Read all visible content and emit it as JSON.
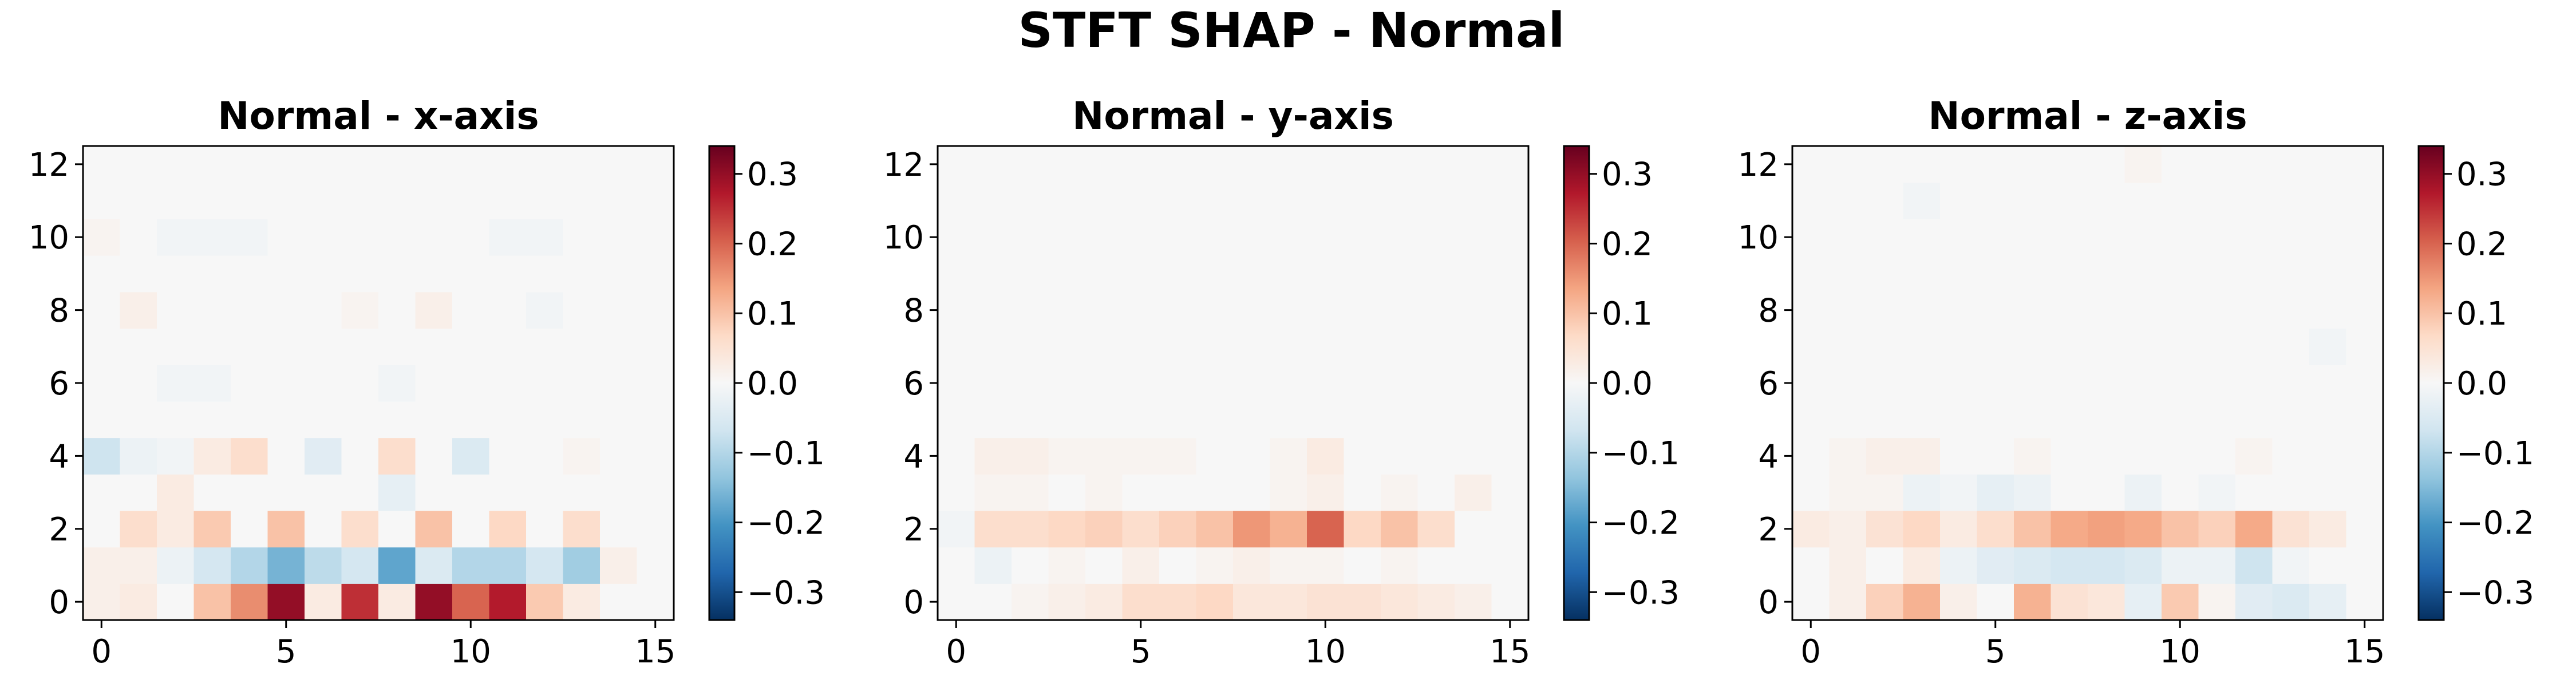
{
  "figure": {
    "suptitle": "STFT SHAP - Normal"
  },
  "chart_data": [
    {
      "type": "heatmap",
      "title": "Normal - x-axis",
      "xlabel": "",
      "ylabel": "",
      "xlim": [
        -0.5,
        15.5
      ],
      "ylim": [
        -0.5,
        12.5
      ],
      "xticks": [
        0,
        5,
        10,
        15
      ],
      "yticks": [
        0,
        2,
        4,
        6,
        8,
        10,
        12
      ],
      "colormap": "RdBu_r",
      "vmin": -0.34,
      "vmax": 0.34,
      "colorbar_ticks": [
        "0.3",
        "0.2",
        "0.1",
        "0.0",
        "−0.1",
        "−0.2",
        "−0.3"
      ],
      "colorbar_tick_values": [
        0.3,
        0.2,
        0.1,
        0.0,
        -0.1,
        -0.2,
        -0.3
      ],
      "z": [
        [
          0.02,
          0.03,
          0.0,
          0.1,
          0.16,
          0.3,
          0.03,
          0.25,
          0.03,
          0.3,
          0.2,
          0.27,
          0.09,
          0.03,
          0.0,
          0.0
        ],
        [
          0.02,
          0.02,
          -0.02,
          -0.06,
          -0.1,
          -0.16,
          -0.09,
          -0.06,
          -0.18,
          -0.05,
          -0.1,
          -0.1,
          -0.06,
          -0.12,
          0.02,
          0.0
        ],
        [
          0.0,
          0.06,
          0.03,
          0.09,
          0.0,
          0.1,
          0.0,
          0.06,
          0.0,
          0.1,
          0.0,
          0.07,
          0.0,
          0.06,
          0.0,
          0.0
        ],
        [
          0.0,
          0.0,
          0.03,
          0.0,
          0.0,
          0.0,
          0.0,
          0.0,
          -0.03,
          0.0,
          0.0,
          0.0,
          0.0,
          0.0,
          0.0,
          0.0
        ],
        [
          -0.07,
          -0.02,
          -0.01,
          0.03,
          0.06,
          0.0,
          -0.04,
          0.0,
          0.06,
          0.0,
          -0.05,
          0.0,
          0.0,
          0.01,
          0.0,
          0.0
        ],
        [
          0.0,
          0.0,
          0.0,
          0.0,
          0.0,
          0.0,
          0.0,
          0.0,
          0.0,
          0.0,
          0.0,
          0.0,
          0.0,
          0.0,
          0.0,
          0.0
        ],
        [
          0.0,
          0.0,
          -0.01,
          -0.01,
          0.0,
          0.0,
          0.0,
          0.0,
          -0.01,
          0.0,
          0.0,
          0.0,
          0.0,
          0.0,
          0.0,
          0.0
        ],
        [
          0.0,
          0.0,
          0.0,
          0.0,
          0.0,
          0.0,
          0.0,
          0.0,
          0.0,
          0.0,
          0.0,
          0.0,
          0.0,
          0.0,
          0.0,
          0.0
        ],
        [
          0.0,
          0.02,
          0.0,
          0.0,
          0.0,
          0.0,
          0.0,
          0.01,
          0.0,
          0.02,
          0.0,
          0.0,
          -0.01,
          0.0,
          0.0,
          0.0
        ],
        [
          0.0,
          0.0,
          0.0,
          0.0,
          0.0,
          0.0,
          0.0,
          0.0,
          0.0,
          0.0,
          0.0,
          0.0,
          0.0,
          0.0,
          0.0,
          0.0
        ],
        [
          0.01,
          0.0,
          -0.01,
          -0.01,
          -0.01,
          0.0,
          0.0,
          0.0,
          0.0,
          0.0,
          0.0,
          -0.01,
          -0.01,
          0.0,
          0.0,
          0.0
        ],
        [
          0.0,
          0.0,
          0.0,
          0.0,
          0.0,
          0.0,
          0.0,
          0.0,
          0.0,
          0.0,
          0.0,
          0.0,
          0.0,
          0.0,
          0.0,
          0.0
        ],
        [
          0.0,
          0.0,
          0.0,
          0.0,
          0.0,
          0.0,
          0.0,
          0.0,
          0.0,
          0.0,
          0.0,
          0.0,
          0.0,
          0.0,
          0.0,
          0.0
        ]
      ]
    },
    {
      "type": "heatmap",
      "title": "Normal - y-axis",
      "xlabel": "",
      "ylabel": "",
      "xlim": [
        -0.5,
        15.5
      ],
      "ylim": [
        -0.5,
        12.5
      ],
      "xticks": [
        0,
        5,
        10,
        15
      ],
      "yticks": [
        0,
        2,
        4,
        6,
        8,
        10,
        12
      ],
      "colormap": "RdBu_r",
      "vmin": -0.34,
      "vmax": 0.34,
      "colorbar_ticks": [
        "0.3",
        "0.2",
        "0.1",
        "0.0",
        "−0.1",
        "−0.2",
        "−0.3"
      ],
      "colorbar_tick_values": [
        0.3,
        0.2,
        0.1,
        0.0,
        -0.1,
        -0.2,
        -0.3
      ],
      "z": [
        [
          0.0,
          0.0,
          0.01,
          0.02,
          0.03,
          0.06,
          0.06,
          0.07,
          0.04,
          0.04,
          0.05,
          0.05,
          0.04,
          0.03,
          0.02,
          0.0
        ],
        [
          0.0,
          -0.02,
          0.0,
          0.01,
          0.0,
          0.02,
          0.0,
          0.01,
          0.02,
          0.01,
          0.01,
          0.0,
          0.01,
          0.0,
          0.0,
          0.0
        ],
        [
          -0.01,
          0.06,
          0.06,
          0.07,
          0.08,
          0.06,
          0.08,
          0.1,
          0.15,
          0.12,
          0.2,
          0.07,
          0.1,
          0.06,
          0.0,
          0.0
        ],
        [
          0.0,
          0.01,
          0.01,
          0.0,
          0.01,
          0.0,
          0.0,
          0.0,
          0.0,
          0.01,
          0.02,
          0.0,
          0.01,
          0.0,
          0.02,
          0.0
        ],
        [
          0.0,
          0.02,
          0.02,
          0.01,
          0.01,
          0.01,
          0.01,
          0.0,
          0.0,
          0.01,
          0.03,
          0.0,
          0.0,
          0.0,
          0.0,
          0.0
        ],
        [
          0.0,
          0.0,
          0.0,
          0.0,
          0.0,
          0.0,
          0.0,
          0.0,
          0.0,
          0.0,
          0.0,
          0.0,
          0.0,
          0.0,
          0.0,
          0.0
        ],
        [
          0.0,
          0.0,
          0.0,
          0.0,
          0.0,
          0.0,
          0.0,
          0.0,
          0.0,
          0.0,
          0.0,
          0.0,
          0.0,
          0.0,
          0.0,
          0.0
        ],
        [
          0.0,
          0.0,
          0.0,
          0.0,
          0.0,
          0.0,
          0.0,
          0.0,
          0.0,
          0.0,
          0.0,
          0.0,
          0.0,
          0.0,
          0.0,
          0.0
        ],
        [
          0.0,
          0.0,
          0.0,
          0.0,
          0.0,
          0.0,
          0.0,
          0.0,
          0.0,
          0.0,
          0.0,
          0.0,
          0.0,
          0.0,
          0.0,
          0.0
        ],
        [
          0.0,
          0.0,
          0.0,
          0.0,
          0.0,
          0.0,
          0.0,
          0.0,
          0.0,
          0.0,
          0.0,
          0.0,
          0.0,
          0.0,
          0.0,
          0.0
        ],
        [
          0.0,
          0.0,
          0.0,
          0.0,
          0.0,
          0.0,
          0.0,
          0.0,
          0.0,
          0.0,
          0.0,
          0.0,
          0.0,
          0.0,
          0.0,
          0.0
        ],
        [
          0.0,
          0.0,
          0.0,
          0.0,
          0.0,
          0.0,
          0.0,
          0.0,
          0.0,
          0.0,
          0.0,
          0.0,
          0.0,
          0.0,
          0.0,
          0.0
        ],
        [
          0.0,
          0.0,
          0.0,
          0.0,
          0.0,
          0.0,
          0.0,
          0.0,
          0.0,
          0.0,
          0.0,
          0.0,
          0.0,
          0.0,
          0.0,
          0.0
        ]
      ]
    },
    {
      "type": "heatmap",
      "title": "Normal - z-axis",
      "xlabel": "",
      "ylabel": "",
      "xlim": [
        -0.5,
        15.5
      ],
      "ylim": [
        -0.5,
        12.5
      ],
      "xticks": [
        0,
        5,
        10,
        15
      ],
      "yticks": [
        0,
        2,
        4,
        6,
        8,
        10,
        12
      ],
      "colormap": "RdBu_r",
      "vmin": -0.34,
      "vmax": 0.34,
      "colorbar_ticks": [
        "0.3",
        "0.2",
        "0.1",
        "0.0",
        "−0.1",
        "−0.2",
        "−0.3"
      ],
      "colorbar_tick_values": [
        0.3,
        0.2,
        0.1,
        0.0,
        -0.1,
        -0.2,
        -0.3
      ],
      "z": [
        [
          0.0,
          0.02,
          0.08,
          0.12,
          0.02,
          0.0,
          0.12,
          0.05,
          0.04,
          -0.03,
          0.09,
          0.01,
          -0.04,
          -0.05,
          -0.03,
          0.0
        ],
        [
          0.0,
          0.02,
          0.0,
          0.03,
          -0.02,
          -0.04,
          -0.05,
          -0.06,
          -0.06,
          -0.05,
          -0.02,
          -0.02,
          -0.07,
          -0.01,
          0.0,
          0.0
        ],
        [
          0.03,
          0.02,
          0.05,
          0.07,
          0.03,
          0.06,
          0.1,
          0.13,
          0.14,
          0.13,
          0.1,
          0.08,
          0.13,
          0.05,
          0.03,
          0.0
        ],
        [
          0.0,
          0.01,
          0.01,
          -0.02,
          -0.01,
          -0.03,
          -0.02,
          0.0,
          0.0,
          -0.02,
          0.0,
          -0.01,
          0.0,
          0.0,
          0.0,
          0.0
        ],
        [
          0.0,
          0.01,
          0.02,
          0.02,
          0.0,
          0.0,
          0.01,
          0.0,
          0.0,
          0.0,
          0.0,
          0.0,
          0.01,
          0.0,
          0.0,
          0.0
        ],
        [
          0.0,
          0.0,
          0.0,
          0.0,
          0.0,
          0.0,
          0.0,
          0.0,
          0.0,
          0.0,
          0.0,
          0.0,
          0.0,
          0.0,
          0.0,
          0.0
        ],
        [
          0.0,
          0.0,
          0.0,
          0.0,
          0.0,
          0.0,
          0.0,
          0.0,
          0.0,
          0.0,
          0.0,
          0.0,
          0.0,
          0.0,
          0.0,
          0.0
        ],
        [
          0.0,
          0.0,
          0.0,
          0.0,
          0.0,
          0.0,
          0.0,
          0.0,
          0.0,
          0.0,
          0.0,
          0.0,
          0.0,
          0.0,
          -0.01,
          0.0
        ],
        [
          0.0,
          0.0,
          0.0,
          0.0,
          0.0,
          0.0,
          0.0,
          0.0,
          0.0,
          0.0,
          0.0,
          0.0,
          0.0,
          0.0,
          0.0,
          0.0
        ],
        [
          0.0,
          0.0,
          0.0,
          0.0,
          0.0,
          0.0,
          0.0,
          0.0,
          0.0,
          0.0,
          0.0,
          0.0,
          0.0,
          0.0,
          0.0,
          0.0
        ],
        [
          0.0,
          0.0,
          0.0,
          0.0,
          0.0,
          0.0,
          0.0,
          0.0,
          0.0,
          0.0,
          0.0,
          0.0,
          0.0,
          0.0,
          0.0,
          0.0
        ],
        [
          0.0,
          0.0,
          0.0,
          -0.01,
          0.0,
          0.0,
          0.0,
          0.0,
          0.0,
          0.0,
          0.0,
          0.0,
          0.0,
          0.0,
          0.0,
          0.0
        ],
        [
          0.0,
          0.0,
          0.0,
          0.0,
          0.0,
          0.0,
          0.0,
          0.0,
          0.0,
          0.01,
          0.0,
          0.0,
          0.0,
          0.0,
          0.0,
          0.0
        ]
      ]
    }
  ]
}
